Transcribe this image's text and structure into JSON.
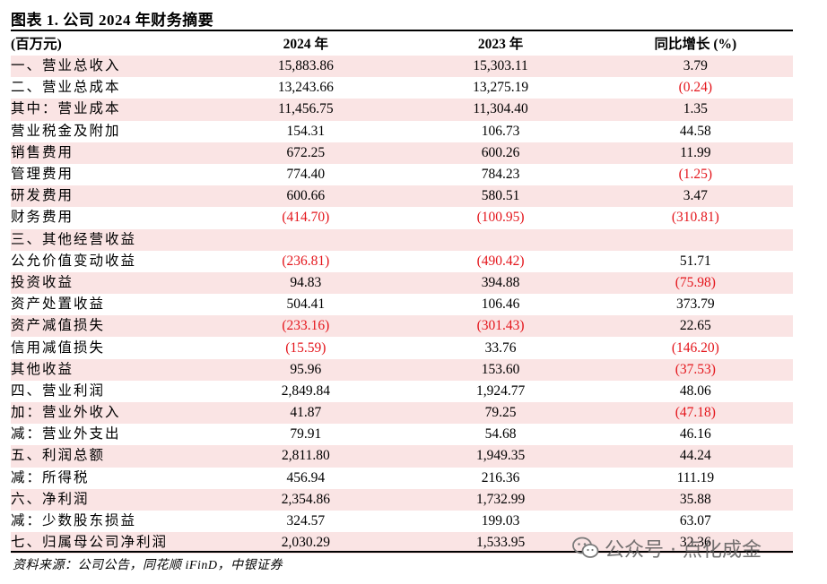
{
  "title": "图表 1. 公司 2024 年财务摘要",
  "header": {
    "label": "(百万元)",
    "col_2024": "2024 年",
    "col_2023": "2023 年",
    "col_yoy": "同比增长 (%)"
  },
  "rows": [
    {
      "label": "一、营业总收入",
      "v2024": "15,883.86",
      "v2023": "15,303.11",
      "yoy": "3.79"
    },
    {
      "label": "二、营业总成本",
      "v2024": "13,243.66",
      "v2023": "13,275.19",
      "yoy": "(0.24)"
    },
    {
      "label": "其中：营业成本",
      "v2024": "11,456.75",
      "v2023": "11,304.40",
      "yoy": "1.35"
    },
    {
      "label": "营业税金及附加",
      "v2024": "154.31",
      "v2023": "106.73",
      "yoy": "44.58"
    },
    {
      "label": "销售费用",
      "v2024": "672.25",
      "v2023": "600.26",
      "yoy": "11.99"
    },
    {
      "label": "管理费用",
      "v2024": "774.40",
      "v2023": "784.23",
      "yoy": "(1.25)"
    },
    {
      "label": "研发费用",
      "v2024": "600.66",
      "v2023": "580.51",
      "yoy": "3.47"
    },
    {
      "label": "财务费用",
      "v2024": "(414.70)",
      "v2023": "(100.95)",
      "yoy": "(310.81)"
    },
    {
      "label": "三、其他经营收益",
      "v2024": "",
      "v2023": "",
      "yoy": ""
    },
    {
      "label": "公允价值变动收益",
      "v2024": "(236.81)",
      "v2023": "(490.42)",
      "yoy": "51.71"
    },
    {
      "label": "投资收益",
      "v2024": "94.83",
      "v2023": "394.88",
      "yoy": "(75.98)"
    },
    {
      "label": "资产处置收益",
      "v2024": "504.41",
      "v2023": "106.46",
      "yoy": "373.79"
    },
    {
      "label": "资产减值损失",
      "v2024": "(233.16)",
      "v2023": "(301.43)",
      "yoy": "22.65"
    },
    {
      "label": "信用减值损失",
      "v2024": "(15.59)",
      "v2023": "33.76",
      "yoy": "(146.20)"
    },
    {
      "label": "其他收益",
      "v2024": "95.96",
      "v2023": "153.60",
      "yoy": "(37.53)"
    },
    {
      "label": "四、营业利润",
      "v2024": "2,849.84",
      "v2023": "1,924.77",
      "yoy": "48.06"
    },
    {
      "label": "加：营业外收入",
      "v2024": "41.87",
      "v2023": "79.25",
      "yoy": "(47.18)"
    },
    {
      "label": "减：营业外支出",
      "v2024": "79.91",
      "v2023": "54.68",
      "yoy": "46.16"
    },
    {
      "label": "五、利润总额",
      "v2024": "2,811.80",
      "v2023": "1,949.35",
      "yoy": "44.24"
    },
    {
      "label": "减：所得税",
      "v2024": "456.94",
      "v2023": "216.36",
      "yoy": "111.19"
    },
    {
      "label": "六、净利润",
      "v2024": "2,354.86",
      "v2023": "1,732.99",
      "yoy": "35.88"
    },
    {
      "label": "减：少数股东损益",
      "v2024": "324.57",
      "v2023": "199.03",
      "yoy": "63.07"
    },
    {
      "label": "七、归属母公司净利润",
      "v2024": "2,030.29",
      "v2023": "1,533.95",
      "yoy": "32.36"
    }
  ],
  "source": "资料来源：公司公告，同花顺 iFinD，中银证券",
  "watermark": {
    "text": "公众号 · 点化成金",
    "icon": "wechat-icon"
  },
  "colors": {
    "stripe": "#fae4e4",
    "negative": "#e4161c"
  }
}
